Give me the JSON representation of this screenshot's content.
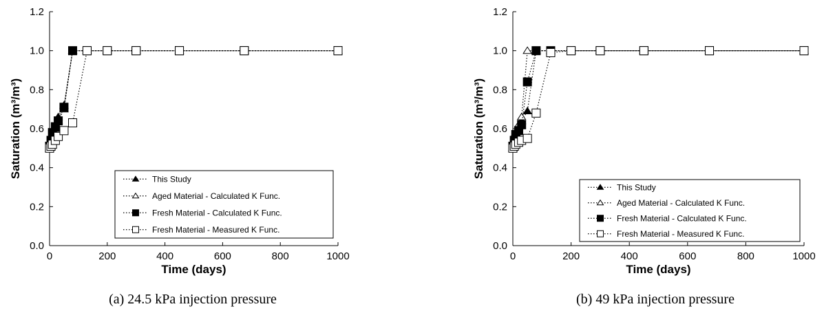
{
  "chart_data": [
    {
      "type": "line",
      "caption": "(a) 24.5 kPa injection pressure",
      "xlabel": "Time (days)",
      "ylabel": "Saturation (m³/m³)",
      "xlim": [
        0,
        1000
      ],
      "ylim": [
        0,
        1.2
      ],
      "xticks": [
        "0",
        "200",
        "400",
        "600",
        "800",
        "1000"
      ],
      "yticks": [
        "0.0",
        "0.2",
        "0.4",
        "0.6",
        "0.8",
        "1.0",
        "1.2"
      ],
      "legend_position": "bottom-right",
      "series": [
        {
          "name": "This Study",
          "marker": "triangle-filled",
          "x": [
            0,
            5,
            10,
            20,
            30,
            50,
            80,
            130,
            200,
            300,
            450,
            675,
            1000
          ],
          "y": [
            0.5,
            0.53,
            0.57,
            0.61,
            0.66,
            0.72,
            1.0,
            1.0,
            1.0,
            1.0,
            1.0,
            1.0,
            1.0
          ]
        },
        {
          "name": "Aged Material - Calculated K Func.",
          "marker": "triangle-open",
          "x": [
            0,
            5,
            10,
            20,
            30,
            50,
            80,
            130,
            200,
            300,
            450,
            675,
            1000
          ],
          "y": [
            0.5,
            0.53,
            0.57,
            0.6,
            0.64,
            0.7,
            1.0,
            1.0,
            1.0,
            1.0,
            1.0,
            1.0,
            1.0
          ]
        },
        {
          "name": "Fresh Material - Calculated K Func.",
          "marker": "square-filled",
          "x": [
            0,
            5,
            10,
            20,
            30,
            50,
            80,
            130,
            200,
            300,
            450,
            675,
            1000
          ],
          "y": [
            0.51,
            0.54,
            0.58,
            0.61,
            0.64,
            0.71,
            1.0,
            1.0,
            1.0,
            1.0,
            1.0,
            1.0,
            1.0
          ]
        },
        {
          "name": "Fresh Material - Measured K Func.",
          "marker": "square-open",
          "x": [
            0,
            5,
            10,
            20,
            30,
            50,
            80,
            130,
            200,
            300,
            450,
            675,
            1000
          ],
          "y": [
            0.5,
            0.51,
            0.52,
            0.54,
            0.56,
            0.59,
            0.63,
            1.0,
            1.0,
            1.0,
            1.0,
            1.0,
            1.0
          ]
        }
      ]
    },
    {
      "type": "line",
      "caption": "(b) 49 kPa injection pressure",
      "xlabel": "Time (days)",
      "ylabel": "Saturation (m³/m³)",
      "xlim": [
        0,
        1000
      ],
      "ylim": [
        0,
        1.2
      ],
      "xticks": [
        "0",
        "200",
        "400",
        "600",
        "800",
        "1000"
      ],
      "yticks": [
        "0.0",
        "0.2",
        "0.4",
        "0.6",
        "0.8",
        "1.0",
        "1.2"
      ],
      "legend_position": "bottom-right",
      "series": [
        {
          "name": "This Study",
          "marker": "triangle-filled",
          "x": [
            0,
            5,
            10,
            20,
            30,
            50,
            80,
            130,
            200,
            300,
            450,
            675,
            1000
          ],
          "y": [
            0.5,
            0.54,
            0.58,
            0.61,
            0.64,
            0.69,
            1.0,
            1.0,
            1.0,
            1.0,
            1.0,
            1.0,
            1.0
          ]
        },
        {
          "name": "Aged Material - Calculated K Func.",
          "marker": "triangle-open",
          "x": [
            0,
            5,
            10,
            20,
            30,
            50,
            80,
            130,
            200,
            300,
            450,
            675,
            1000
          ],
          "y": [
            0.5,
            0.54,
            0.58,
            0.62,
            0.66,
            1.0,
            1.0,
            1.0,
            1.0,
            1.0,
            1.0,
            1.0,
            1.0
          ]
        },
        {
          "name": "Fresh Material - Calculated K Func.",
          "marker": "square-filled",
          "x": [
            0,
            5,
            10,
            20,
            30,
            50,
            80,
            130,
            200,
            300,
            450,
            675,
            1000
          ],
          "y": [
            0.51,
            0.54,
            0.57,
            0.59,
            0.62,
            0.84,
            1.0,
            1.0,
            1.0,
            1.0,
            1.0,
            1.0,
            1.0
          ]
        },
        {
          "name": "Fresh Material - Measured K Func.",
          "marker": "square-open",
          "x": [
            0,
            5,
            10,
            20,
            30,
            50,
            80,
            130,
            200,
            300,
            450,
            675,
            1000
          ],
          "y": [
            0.5,
            0.51,
            0.52,
            0.53,
            0.54,
            0.55,
            0.68,
            0.99,
            1.0,
            1.0,
            1.0,
            1.0,
            1.0
          ]
        }
      ]
    }
  ]
}
